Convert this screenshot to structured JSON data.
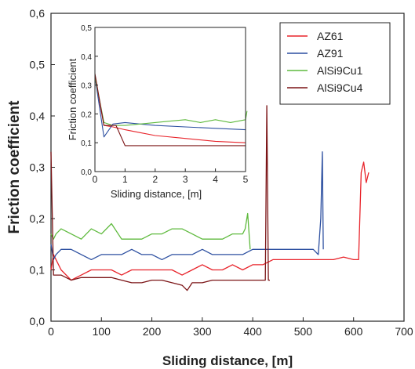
{
  "chart_data": [
    {
      "type": "line",
      "xlabel": "Sliding distance, [m]",
      "ylabel": "Friction coefficient",
      "xlim": [
        0,
        700
      ],
      "ylim": [
        0,
        0.6
      ],
      "x_ticks": [
        "0",
        "100",
        "200",
        "300",
        "400",
        "500",
        "600",
        "700"
      ],
      "y_ticks": [
        "0,0",
        "0,1",
        "0,2",
        "0,3",
        "0,4",
        "0,5",
        "0,6"
      ],
      "legend_position": "top-right",
      "series": [
        {
          "name": "AZ61",
          "color": "#e8232a",
          "x": [
            0,
            5,
            20,
            40,
            60,
            80,
            100,
            120,
            140,
            160,
            180,
            200,
            220,
            240,
            260,
            280,
            300,
            320,
            340,
            360,
            380,
            400,
            420,
            440,
            460,
            480,
            500,
            520,
            540,
            560,
            580,
            600,
            610,
            615,
            620,
            625,
            630
          ],
          "y": [
            0.1,
            0.13,
            0.1,
            0.08,
            0.09,
            0.1,
            0.1,
            0.1,
            0.09,
            0.1,
            0.1,
            0.1,
            0.1,
            0.1,
            0.09,
            0.1,
            0.11,
            0.1,
            0.1,
            0.11,
            0.1,
            0.11,
            0.11,
            0.12,
            0.12,
            0.12,
            0.12,
            0.12,
            0.12,
            0.12,
            0.125,
            0.12,
            0.12,
            0.29,
            0.31,
            0.27,
            0.29
          ]
        },
        {
          "name": "AZ91",
          "color": "#2c4fa0",
          "x": [
            0,
            5,
            10,
            20,
            40,
            60,
            80,
            100,
            120,
            140,
            160,
            180,
            200,
            220,
            240,
            260,
            280,
            300,
            320,
            340,
            360,
            380,
            400,
            420,
            440,
            460,
            480,
            500,
            520,
            530,
            535,
            538,
            540
          ],
          "y": [
            0.15,
            0.12,
            0.13,
            0.14,
            0.14,
            0.13,
            0.12,
            0.13,
            0.13,
            0.13,
            0.14,
            0.13,
            0.13,
            0.12,
            0.13,
            0.13,
            0.13,
            0.14,
            0.13,
            0.13,
            0.13,
            0.13,
            0.14,
            0.14,
            0.14,
            0.14,
            0.14,
            0.14,
            0.14,
            0.13,
            0.2,
            0.33,
            0.14
          ]
        },
        {
          "name": "AlSi9Cu1",
          "color": "#5fba3e",
          "x": [
            0,
            5,
            10,
            20,
            40,
            60,
            80,
            100,
            120,
            140,
            160,
            180,
            200,
            220,
            240,
            260,
            280,
            300,
            320,
            340,
            360,
            380,
            385,
            390,
            395
          ],
          "y": [
            0.17,
            0.16,
            0.17,
            0.18,
            0.17,
            0.16,
            0.18,
            0.17,
            0.19,
            0.16,
            0.16,
            0.16,
            0.17,
            0.17,
            0.18,
            0.18,
            0.17,
            0.16,
            0.16,
            0.16,
            0.17,
            0.17,
            0.18,
            0.21,
            0.14
          ]
        },
        {
          "name": "AlSi9Cu4",
          "color": "#7b1416",
          "x": [
            0,
            5,
            20,
            40,
            60,
            80,
            100,
            120,
            140,
            160,
            180,
            200,
            220,
            240,
            260,
            270,
            280,
            300,
            320,
            340,
            360,
            380,
            400,
            420,
            425,
            428,
            431,
            434
          ],
          "y": [
            0.33,
            0.09,
            0.09,
            0.08,
            0.085,
            0.085,
            0.085,
            0.085,
            0.08,
            0.075,
            0.075,
            0.08,
            0.08,
            0.075,
            0.07,
            0.06,
            0.075,
            0.075,
            0.08,
            0.08,
            0.08,
            0.08,
            0.08,
            0.08,
            0.08,
            0.42,
            0.08,
            0.08
          ]
        }
      ]
    },
    {
      "type": "line",
      "xlabel": "Sliding distance, [m]",
      "ylabel": "Friction coefficient",
      "xlim": [
        0,
        5
      ],
      "ylim": [
        0,
        0.5
      ],
      "x_ticks": [
        "0",
        "1",
        "2",
        "3",
        "4",
        "5"
      ],
      "y_ticks": [
        "0,0",
        "0,1",
        "0,2",
        "0,3",
        "0,4",
        "0,5"
      ],
      "series": [
        {
          "name": "AZ61",
          "color": "#e8232a",
          "x": [
            0,
            0.3,
            0.6,
            1,
            1.5,
            2,
            3,
            4,
            5
          ],
          "y": [
            0.33,
            0.16,
            0.155,
            0.145,
            0.135,
            0.125,
            0.115,
            0.105,
            0.1
          ]
        },
        {
          "name": "AZ91",
          "color": "#2c4fa0",
          "x": [
            0,
            0.3,
            0.6,
            1,
            1.5,
            2,
            3,
            4,
            5
          ],
          "y": [
            0.33,
            0.12,
            0.165,
            0.17,
            0.165,
            0.16,
            0.155,
            0.15,
            0.145
          ]
        },
        {
          "name": "AlSi9Cu1",
          "color": "#5fba3e",
          "x": [
            0,
            0.3,
            0.6,
            1,
            1.5,
            2,
            2.5,
            3,
            3.5,
            4,
            4.5,
            5,
            5.1
          ],
          "y": [
            0.33,
            0.17,
            0.16,
            0.16,
            0.165,
            0.17,
            0.175,
            0.18,
            0.17,
            0.18,
            0.17,
            0.18,
            0.21
          ]
        },
        {
          "name": "AlSi9Cu4",
          "color": "#7b1416",
          "x": [
            0,
            0.3,
            0.7,
            1,
            2,
            3,
            4,
            5
          ],
          "y": [
            0.34,
            0.16,
            0.16,
            0.09,
            0.09,
            0.09,
            0.09,
            0.09
          ]
        }
      ]
    }
  ]
}
